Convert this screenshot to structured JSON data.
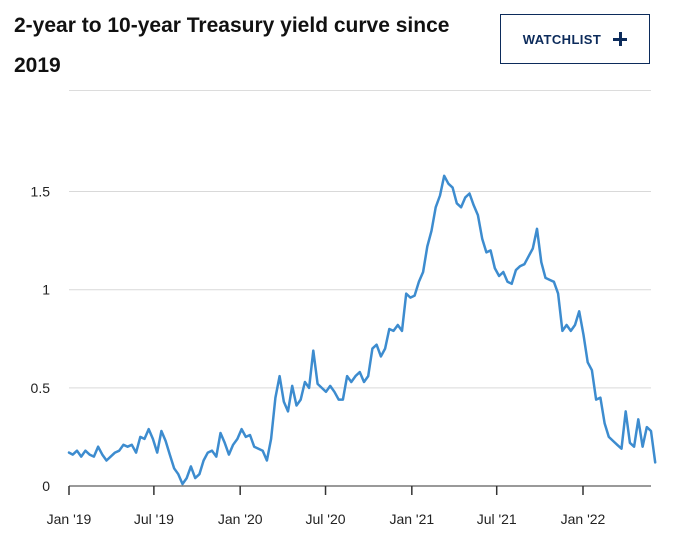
{
  "header": {
    "title": "2-year to 10-year Treasury yield curve since 2019",
    "watchlist_label": "WATCHLIST",
    "watchlist_icon": "plus-icon"
  },
  "colors": {
    "line": "#3d8ccf",
    "grid": "#d9d9d9",
    "button_border": "#0c2b5b"
  },
  "chart_data": {
    "type": "line",
    "title": "2-year to 10-year Treasury yield curve since 2019",
    "xlabel": "",
    "ylabel": "",
    "ylim": [
      0,
      2
    ],
    "yticks": [
      0,
      0.5,
      1,
      1.5
    ],
    "ytick_labels": [
      "0",
      "0.5",
      "1",
      "1.5"
    ],
    "xticks": [
      "2019-01-01",
      "2019-07-01",
      "2020-01-01",
      "2020-07-01",
      "2021-01-01",
      "2021-07-01",
      "2022-01-01"
    ],
    "xtick_labels": [
      "Jan '19",
      "Jul '19",
      "Jan '20",
      "Jul '20",
      "Jan '21",
      "Jul '21",
      "Jan '22"
    ],
    "xlim": [
      "2019-01-01",
      "2022-06-10"
    ],
    "grid": true,
    "legend": "none",
    "series": [
      {
        "values": [
          [
            "2019-01-01",
            0.17
          ],
          [
            "2019-01-09",
            0.16
          ],
          [
            "2019-01-18",
            0.18
          ],
          [
            "2019-01-27",
            0.15
          ],
          [
            "2019-02-05",
            0.18
          ],
          [
            "2019-02-14",
            0.16
          ],
          [
            "2019-02-23",
            0.15
          ],
          [
            "2019-03-04",
            0.2
          ],
          [
            "2019-03-13",
            0.16
          ],
          [
            "2019-03-22",
            0.13
          ],
          [
            "2019-03-31",
            0.15
          ],
          [
            "2019-04-09",
            0.17
          ],
          [
            "2019-04-18",
            0.18
          ],
          [
            "2019-04-27",
            0.21
          ],
          [
            "2019-05-06",
            0.2
          ],
          [
            "2019-05-15",
            0.21
          ],
          [
            "2019-05-24",
            0.17
          ],
          [
            "2019-06-02",
            0.25
          ],
          [
            "2019-06-11",
            0.24
          ],
          [
            "2019-06-20",
            0.29
          ],
          [
            "2019-06-29",
            0.24
          ],
          [
            "2019-07-08",
            0.17
          ],
          [
            "2019-07-17",
            0.28
          ],
          [
            "2019-07-26",
            0.23
          ],
          [
            "2019-08-04",
            0.16
          ],
          [
            "2019-08-13",
            0.09
          ],
          [
            "2019-08-22",
            0.06
          ],
          [
            "2019-08-31",
            0.01
          ],
          [
            "2019-09-09",
            0.04
          ],
          [
            "2019-09-18",
            0.1
          ],
          [
            "2019-09-27",
            0.04
          ],
          [
            "2019-10-06",
            0.06
          ],
          [
            "2019-10-15",
            0.13
          ],
          [
            "2019-10-24",
            0.17
          ],
          [
            "2019-11-02",
            0.18
          ],
          [
            "2019-11-11",
            0.15
          ],
          [
            "2019-11-20",
            0.27
          ],
          [
            "2019-11-29",
            0.22
          ],
          [
            "2019-12-08",
            0.16
          ],
          [
            "2019-12-17",
            0.21
          ],
          [
            "2019-12-26",
            0.24
          ],
          [
            "2020-01-04",
            0.29
          ],
          [
            "2020-01-13",
            0.25
          ],
          [
            "2020-01-22",
            0.26
          ],
          [
            "2020-01-31",
            0.2
          ],
          [
            "2020-02-09",
            0.19
          ],
          [
            "2020-02-18",
            0.18
          ],
          [
            "2020-02-27",
            0.13
          ],
          [
            "2020-03-07",
            0.24
          ],
          [
            "2020-03-16",
            0.45
          ],
          [
            "2020-03-25",
            0.56
          ],
          [
            "2020-04-03",
            0.43
          ],
          [
            "2020-04-12",
            0.38
          ],
          [
            "2020-04-21",
            0.51
          ],
          [
            "2020-04-30",
            0.41
          ],
          [
            "2020-05-09",
            0.44
          ],
          [
            "2020-05-18",
            0.53
          ],
          [
            "2020-05-27",
            0.5
          ],
          [
            "2020-06-05",
            0.69
          ],
          [
            "2020-06-14",
            0.52
          ],
          [
            "2020-06-23",
            0.5
          ],
          [
            "2020-07-02",
            0.48
          ],
          [
            "2020-07-11",
            0.51
          ],
          [
            "2020-07-20",
            0.48
          ],
          [
            "2020-07-29",
            0.44
          ],
          [
            "2020-08-07",
            0.44
          ],
          [
            "2020-08-16",
            0.56
          ],
          [
            "2020-08-25",
            0.53
          ],
          [
            "2020-09-03",
            0.56
          ],
          [
            "2020-09-12",
            0.58
          ],
          [
            "2020-09-21",
            0.53
          ],
          [
            "2020-09-30",
            0.56
          ],
          [
            "2020-10-09",
            0.7
          ],
          [
            "2020-10-18",
            0.72
          ],
          [
            "2020-10-27",
            0.66
          ],
          [
            "2020-11-05",
            0.7
          ],
          [
            "2020-11-14",
            0.8
          ],
          [
            "2020-11-23",
            0.79
          ],
          [
            "2020-12-02",
            0.82
          ],
          [
            "2020-12-11",
            0.79
          ],
          [
            "2020-12-20",
            0.98
          ],
          [
            "2020-12-29",
            0.96
          ],
          [
            "2021-01-07",
            0.97
          ],
          [
            "2021-01-16",
            1.04
          ],
          [
            "2021-01-25",
            1.09
          ],
          [
            "2021-02-03",
            1.22
          ],
          [
            "2021-02-12",
            1.3
          ],
          [
            "2021-02-21",
            1.42
          ],
          [
            "2021-03-02",
            1.48
          ],
          [
            "2021-03-11",
            1.58
          ],
          [
            "2021-03-20",
            1.54
          ],
          [
            "2021-03-29",
            1.52
          ],
          [
            "2021-04-07",
            1.44
          ],
          [
            "2021-04-16",
            1.42
          ],
          [
            "2021-04-25",
            1.47
          ],
          [
            "2021-05-04",
            1.49
          ],
          [
            "2021-05-13",
            1.43
          ],
          [
            "2021-05-22",
            1.38
          ],
          [
            "2021-05-31",
            1.26
          ],
          [
            "2021-06-09",
            1.19
          ],
          [
            "2021-06-18",
            1.2
          ],
          [
            "2021-06-27",
            1.11
          ],
          [
            "2021-07-06",
            1.07
          ],
          [
            "2021-07-15",
            1.09
          ],
          [
            "2021-07-24",
            1.04
          ],
          [
            "2021-08-02",
            1.03
          ],
          [
            "2021-08-11",
            1.1
          ],
          [
            "2021-08-20",
            1.12
          ],
          [
            "2021-08-29",
            1.13
          ],
          [
            "2021-09-07",
            1.17
          ],
          [
            "2021-09-16",
            1.21
          ],
          [
            "2021-09-25",
            1.31
          ],
          [
            "2021-10-04",
            1.14
          ],
          [
            "2021-10-13",
            1.06
          ],
          [
            "2021-10-22",
            1.05
          ],
          [
            "2021-10-31",
            1.04
          ],
          [
            "2021-11-09",
            0.98
          ],
          [
            "2021-11-18",
            0.79
          ],
          [
            "2021-11-27",
            0.82
          ],
          [
            "2021-12-06",
            0.79
          ],
          [
            "2021-12-15",
            0.82
          ],
          [
            "2021-12-24",
            0.89
          ],
          [
            "2022-01-02",
            0.77
          ],
          [
            "2022-01-11",
            0.63
          ],
          [
            "2022-01-20",
            0.59
          ],
          [
            "2022-01-29",
            0.44
          ],
          [
            "2022-02-07",
            0.45
          ],
          [
            "2022-02-16",
            0.32
          ],
          [
            "2022-02-25",
            0.25
          ],
          [
            "2022-03-06",
            0.23
          ],
          [
            "2022-03-15",
            0.21
          ],
          [
            "2022-03-24",
            0.19
          ],
          [
            "2022-04-02",
            0.38
          ],
          [
            "2022-04-11",
            0.22
          ],
          [
            "2022-04-20",
            0.2
          ],
          [
            "2022-04-29",
            0.34
          ],
          [
            "2022-05-08",
            0.2
          ],
          [
            "2022-05-17",
            0.3
          ],
          [
            "2022-05-26",
            0.28
          ],
          [
            "2022-06-04",
            0.12
          ]
        ]
      }
    ]
  }
}
